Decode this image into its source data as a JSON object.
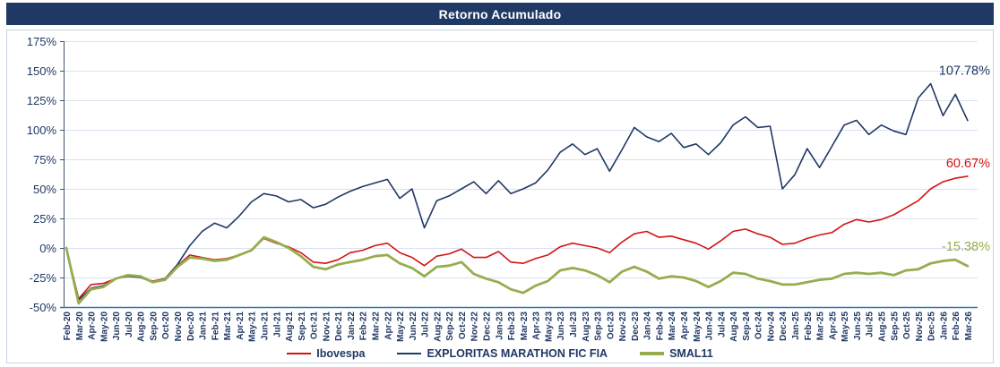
{
  "title": "Retorno Acumulado",
  "colors": {
    "title_bg": "#1F3864",
    "title_text": "#FFFFFF",
    "axis_text": "#1F3864",
    "gridline": "#D9E1F1",
    "frame_border": "#C7D5E8",
    "y_axis_line": "#44546A",
    "x_axis_line": "#2E75B6",
    "ibovespa": "#D41414",
    "exploritas": "#1F3864",
    "smal11": "#96AD4E"
  },
  "chart_data": {
    "type": "line",
    "title": "Retorno Acumulado",
    "grid": true,
    "legend_position": "bottom",
    "ylim": [
      -50,
      175
    ],
    "y_ticks": [
      175,
      150,
      125,
      100,
      75,
      50,
      25,
      0,
      -25,
      -50
    ],
    "y_tick_suffix": "%",
    "x_labels": [
      "Feb-20",
      "Mar-20",
      "Apr-20",
      "May-20",
      "Jun-20",
      "Jul-20",
      "Aug-20",
      "Sep-20",
      "Oct-20",
      "Nov-20",
      "Dec-20",
      "Jan-21",
      "Feb-21",
      "Mar-21",
      "Apr-21",
      "May-21",
      "Jun-21",
      "Jul-21",
      "Aug-21",
      "Sep-21",
      "Oct-21",
      "Nov-21",
      "Dec-21",
      "Jan-22",
      "Feb-22",
      "Mar-22",
      "Apr-22",
      "May-22",
      "Jun-22",
      "Jul-22",
      "Aug-22",
      "Sep-22",
      "Oct-22",
      "Nov-22",
      "Dec-22",
      "Jan-23",
      "Feb-23",
      "Mar-23",
      "Apr-23",
      "May-23",
      "Jun-23",
      "Jul-23",
      "Aug-23",
      "Sep-23",
      "Oct-23",
      "Nov-23",
      "Dec-23",
      "Jan-24",
      "Feb-24",
      "Mar-24",
      "Apr-24",
      "May-24",
      "Jun-24",
      "Jul-24",
      "Aug-24",
      "Sep-24",
      "Oct-24",
      "Nov-24",
      "Dec-24",
      "Jan-25",
      "Feb-25",
      "Mar-25",
      "Apr-25",
      "May-25",
      "Jun-25",
      "Jul-25",
      "Aug-25",
      "Sep-25",
      "Oct-25",
      "Nov-25",
      "Dec-25",
      "Jan-26",
      "Feb-26",
      "Mar-26"
    ],
    "series": [
      {
        "id": "ibovespa",
        "name": "Ibovespa",
        "color": "#D41414",
        "width": 1.6,
        "end_label": "60.67%",
        "values": [
          0,
          -43,
          -31,
          -30,
          -26,
          -23,
          -25,
          -28,
          -26,
          -15,
          -6,
          -8,
          -10,
          -9,
          -6,
          -2,
          8,
          4,
          1,
          -4,
          -12,
          -13,
          -10,
          -4,
          -2,
          2,
          4,
          -4,
          -8,
          -15,
          -7,
          -5,
          -1,
          -8,
          -8,
          -3,
          -12,
          -13,
          -9,
          -6,
          1,
          4,
          2,
          0,
          -4,
          5,
          12,
          14,
          9,
          10,
          7,
          4,
          -1,
          6,
          14,
          16,
          12,
          9,
          3,
          4,
          8,
          11,
          13,
          20,
          24,
          22,
          24,
          28,
          34,
          40,
          50,
          56,
          59,
          60.67
        ]
      },
      {
        "id": "exploritas",
        "name": "EXPLORITAS MARATHON FIC FIA",
        "color": "#1F3864",
        "width": 1.6,
        "end_label": "107.78%",
        "values": [
          0,
          -44,
          -34,
          -32,
          -26,
          -24,
          -25,
          -29,
          -26,
          -14,
          2,
          14,
          21,
          17,
          27,
          39,
          46,
          44,
          39,
          41,
          34,
          37,
          43,
          48,
          52,
          55,
          58,
          42,
          50,
          17,
          40,
          44,
          50,
          56,
          46,
          57,
          46,
          50,
          55,
          66,
          81,
          88,
          79,
          84,
          65,
          83,
          102,
          94,
          90,
          97,
          85,
          88,
          79,
          89,
          104,
          111,
          102,
          103,
          50,
          62,
          84,
          68,
          86,
          104,
          108,
          96,
          104,
          99,
          96,
          127,
          139,
          112,
          130,
          107.78
        ]
      },
      {
        "id": "smal11",
        "name": "SMAL11",
        "color": "#96AD4E",
        "width": 2.8,
        "end_label": "-15.38%",
        "values": [
          0,
          -47,
          -35,
          -33,
          -26,
          -23,
          -24,
          -29,
          -27,
          -16,
          -8,
          -9,
          -11,
          -10,
          -6,
          -2,
          9,
          5,
          0,
          -7,
          -16,
          -18,
          -14,
          -12,
          -10,
          -7,
          -6,
          -13,
          -17,
          -24,
          -16,
          -15,
          -12,
          -22,
          -26,
          -29,
          -35,
          -38,
          -32,
          -28,
          -19,
          -17,
          -19,
          -23,
          -29,
          -20,
          -16,
          -20,
          -26,
          -24,
          -25,
          -28,
          -33,
          -28,
          -21,
          -22,
          -26,
          -28,
          -31,
          -31,
          -29,
          -27,
          -26,
          -22,
          -21,
          -22,
          -21,
          -23,
          -19,
          -18,
          -13,
          -11,
          -10,
          -15.38
        ]
      }
    ]
  }
}
